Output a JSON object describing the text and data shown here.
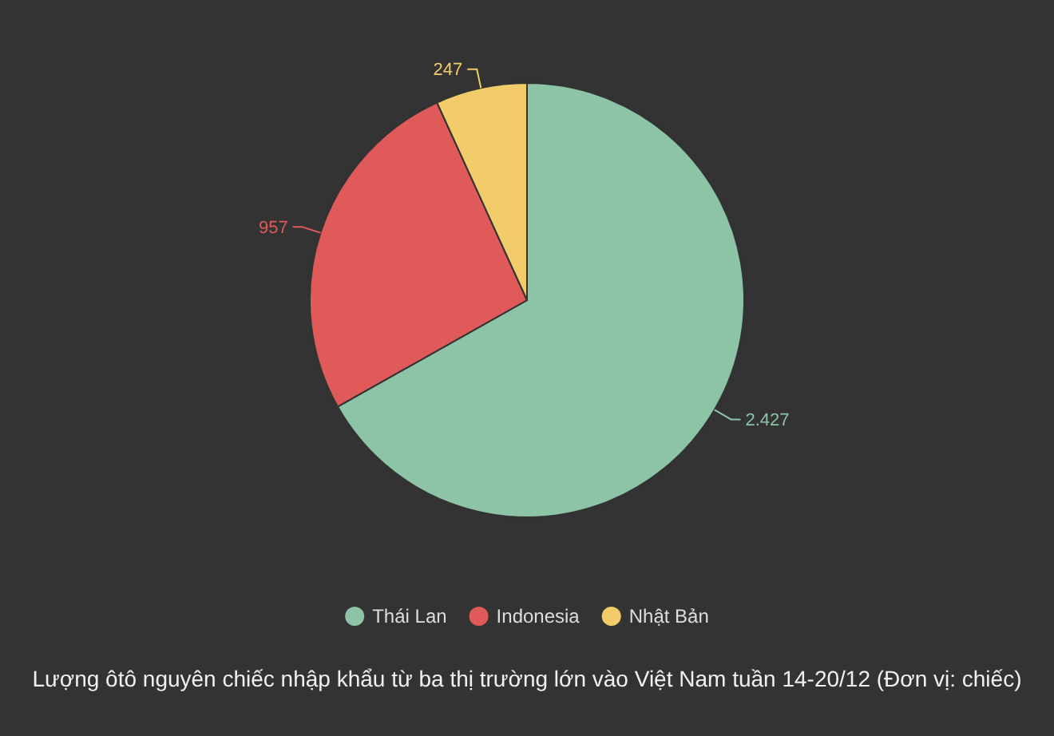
{
  "chart_data": {
    "type": "pie",
    "title": "Lượng ôtô nguyên chiếc nhập khẩu từ ba thị trường lớn vào Việt Nam tuần 14-20/12 (Đơn vị: chiếc)",
    "categories": [
      "Thái Lan",
      "Indonesia",
      "Nhật Bản"
    ],
    "values": [
      2427,
      957,
      247
    ],
    "value_labels": [
      "2.427",
      "957",
      "247"
    ],
    "colors": [
      "#8dc3a7",
      "#e05a5a",
      "#f2cc6a"
    ],
    "legend": "bottom"
  }
}
